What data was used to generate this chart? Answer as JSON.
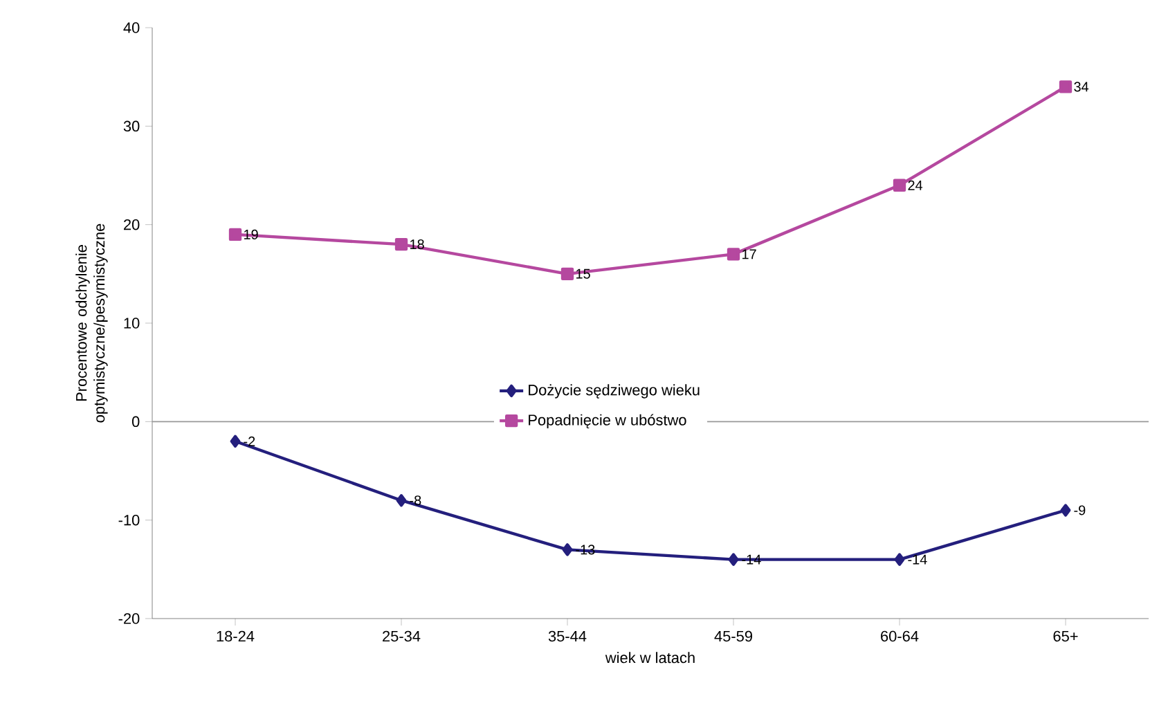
{
  "chart_data": {
    "type": "line",
    "xlabel": "wiek w latach",
    "ylabel": "Procentowe odchylenie optymistyczne/pesymistyczne",
    "categories": [
      "18-24",
      "25-34",
      "35-44",
      "45-59",
      "60-64",
      "65+"
    ],
    "series": [
      {
        "name": "Dożycie sędziwego wieku",
        "color": "#241f7d",
        "marker": "diamond",
        "values": [
          -2,
          -8,
          -13,
          -14,
          -14,
          -9
        ]
      },
      {
        "name": "Popadnięcie w ubóstwo",
        "color": "#b5489f",
        "marker": "square",
        "values": [
          19,
          18,
          15,
          17,
          24,
          34
        ]
      }
    ],
    "ylim": [
      -20,
      40
    ],
    "yticks": [
      -20,
      -10,
      0,
      10,
      20,
      30,
      40
    ],
    "ref_lines": [
      {
        "axis": "y",
        "value": 0,
        "color": "#999999"
      }
    ],
    "data_labels": true,
    "grid": false,
    "legend": "center",
    "line_style": "solid"
  }
}
